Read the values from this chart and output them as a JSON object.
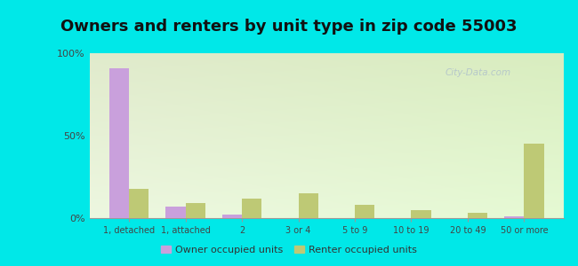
{
  "title": "Owners and renters by unit type in zip code 55003",
  "categories": [
    "1, detached",
    "1, attached",
    "2",
    "3 or 4",
    "5 to 9",
    "10 to 19",
    "20 to 49",
    "50 or more"
  ],
  "owner_values": [
    91,
    7,
    2,
    0,
    0,
    0,
    0,
    1
  ],
  "renter_values": [
    18,
    9,
    12,
    15,
    8,
    5,
    3,
    45
  ],
  "owner_color": "#c9a0dc",
  "renter_color": "#bec975",
  "background_outer": "#00e8e8",
  "ylim": [
    0,
    100
  ],
  "yticks": [
    0,
    50,
    100
  ],
  "ytick_labels": [
    "0%",
    "50%",
    "100%"
  ],
  "title_fontsize": 13,
  "legend_label_owner": "Owner occupied units",
  "legend_label_renter": "Renter occupied units",
  "watermark": "City-Data.com"
}
